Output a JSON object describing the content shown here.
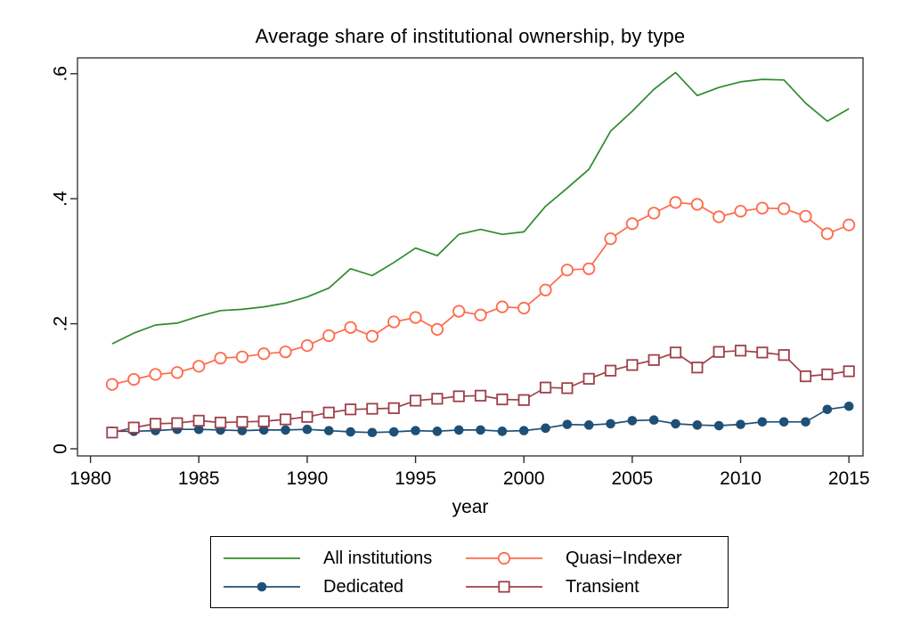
{
  "figure": {
    "background": "#ffffff",
    "border_color": "#2b2b2b",
    "text_color": "#000000"
  },
  "chart_data": {
    "type": "line",
    "title": "Average share of institutional ownership, by type",
    "xlabel": "year",
    "ylabel": "",
    "grid": false,
    "legend_position": "bottom",
    "x": [
      1981,
      1982,
      1983,
      1984,
      1985,
      1986,
      1987,
      1988,
      1989,
      1990,
      1991,
      1992,
      1993,
      1994,
      1995,
      1996,
      1997,
      1998,
      1999,
      2000,
      2001,
      2002,
      2003,
      2004,
      2005,
      2006,
      2007,
      2008,
      2009,
      2010,
      2011,
      2012,
      2013,
      2014,
      2015
    ],
    "x_ticks": [
      1980,
      1985,
      1990,
      1995,
      2000,
      2005,
      2010,
      2015
    ],
    "y_ticks": [
      {
        "value": 0,
        "label": "0"
      },
      {
        "value": 0.2,
        "label": ".2"
      },
      {
        "value": 0.4,
        "label": ".4"
      },
      {
        "value": 0.6,
        "label": ".6"
      }
    ],
    "x_range": [
      1979.4,
      2015.65
    ],
    "y_range": [
      -0.0114,
      0.6253
    ],
    "series": [
      {
        "name": "All institutions",
        "color": "#2e8b2e",
        "marker": "none",
        "values": [
          0.168,
          0.185,
          0.198,
          0.201,
          0.212,
          0.221,
          0.223,
          0.227,
          0.233,
          0.243,
          0.257,
          0.288,
          0.277,
          0.298,
          0.321,
          0.309,
          0.343,
          0.351,
          0.343,
          0.347,
          0.388,
          0.417,
          0.447,
          0.508,
          0.54,
          0.575,
          0.602,
          0.565,
          0.578,
          0.587,
          0.591,
          0.59,
          0.553,
          0.524,
          0.544
        ]
      },
      {
        "name": "Quasi−Indexer",
        "color": "#ff6a4a",
        "marker": "circle-open",
        "values": [
          0.103,
          0.111,
          0.119,
          0.122,
          0.132,
          0.145,
          0.147,
          0.152,
          0.155,
          0.165,
          0.181,
          0.194,
          0.18,
          0.203,
          0.21,
          0.191,
          0.22,
          0.214,
          0.227,
          0.225,
          0.254,
          0.286,
          0.288,
          0.336,
          0.36,
          0.377,
          0.394,
          0.391,
          0.371,
          0.38,
          0.385,
          0.384,
          0.372,
          0.344,
          0.358
        ]
      },
      {
        "name": "Dedicated",
        "color": "#1e5077",
        "marker": "circle-filled",
        "values": [
          0.028,
          0.028,
          0.029,
          0.031,
          0.031,
          0.03,
          0.029,
          0.03,
          0.03,
          0.031,
          0.029,
          0.027,
          0.026,
          0.027,
          0.029,
          0.028,
          0.03,
          0.03,
          0.028,
          0.029,
          0.033,
          0.039,
          0.038,
          0.04,
          0.045,
          0.046,
          0.04,
          0.038,
          0.037,
          0.039,
          0.043,
          0.043,
          0.043,
          0.063,
          0.068
        ]
      },
      {
        "name": "Transient",
        "color": "#9e4149",
        "marker": "square-open",
        "values": [
          0.026,
          0.034,
          0.04,
          0.041,
          0.045,
          0.042,
          0.043,
          0.044,
          0.047,
          0.051,
          0.058,
          0.063,
          0.064,
          0.065,
          0.077,
          0.08,
          0.084,
          0.085,
          0.079,
          0.078,
          0.098,
          0.097,
          0.112,
          0.125,
          0.134,
          0.142,
          0.154,
          0.13,
          0.155,
          0.157,
          0.154,
          0.15,
          0.116,
          0.119,
          0.124
        ]
      }
    ]
  }
}
